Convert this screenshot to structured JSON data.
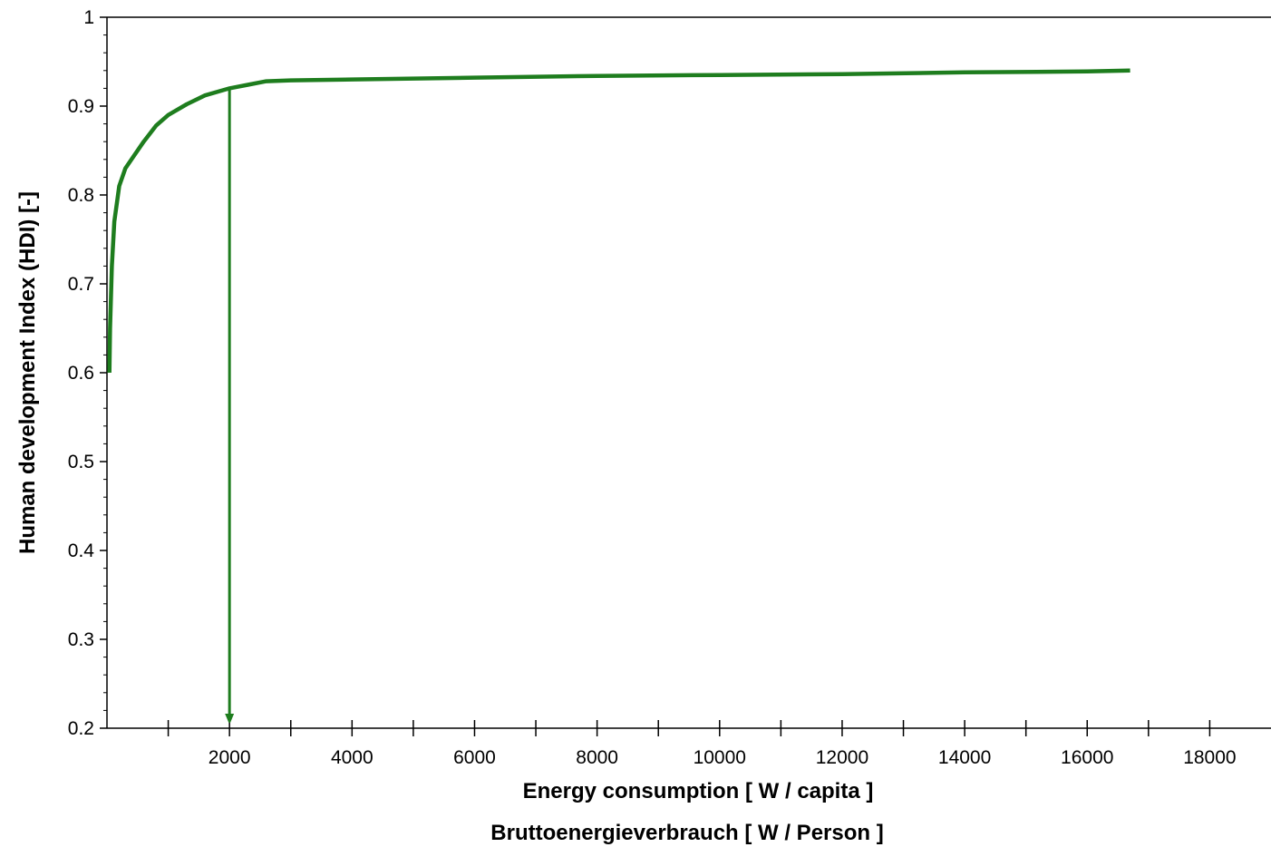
{
  "chart_data": {
    "type": "line",
    "xlabel": "Energy consumption [ W / capita ]",
    "xlabel_secondary": "Bruttoenergieverbrauch [ W / Person ]",
    "ylabel": "Human development Index (HDI) [-]",
    "xlim": [
      0,
      19000
    ],
    "ylim": [
      0.2,
      1.0
    ],
    "x_ticks": [
      2000,
      4000,
      6000,
      8000,
      10000,
      12000,
      14000,
      16000,
      18000
    ],
    "x_tick_labels": [
      "2000",
      "4000",
      "6000",
      "8000",
      "10000",
      "12000",
      "14000",
      "16000",
      "18000"
    ],
    "y_ticks": [
      0.2,
      0.3,
      0.4,
      0.5,
      0.6,
      0.7,
      0.8,
      0.9,
      1.0
    ],
    "y_tick_labels": [
      "0.2",
      "0.3",
      "0.4",
      "0.5",
      "0.6",
      "0.7",
      "0.8",
      "0.9",
      "1"
    ],
    "grid": false,
    "series": [
      {
        "color": "#1e7d1e",
        "x": [
          40,
          50,
          80,
          120,
          200,
          300,
          450,
          600,
          800,
          1000,
          1300,
          1600,
          2000,
          2300,
          2600,
          3000,
          4000,
          6000,
          8000,
          10000,
          12000,
          14000,
          16000,
          16700
        ],
        "y": [
          0.6,
          0.65,
          0.72,
          0.77,
          0.81,
          0.83,
          0.845,
          0.86,
          0.878,
          0.89,
          0.902,
          0.912,
          0.92,
          0.924,
          0.928,
          0.929,
          0.93,
          0.932,
          0.934,
          0.935,
          0.936,
          0.938,
          0.939,
          0.94
        ]
      }
    ],
    "annotations": [
      {
        "type": "arrow",
        "color": "#1e7d1e",
        "x": 2000,
        "from_y": 0.92,
        "to_y": 0.2
      }
    ]
  }
}
